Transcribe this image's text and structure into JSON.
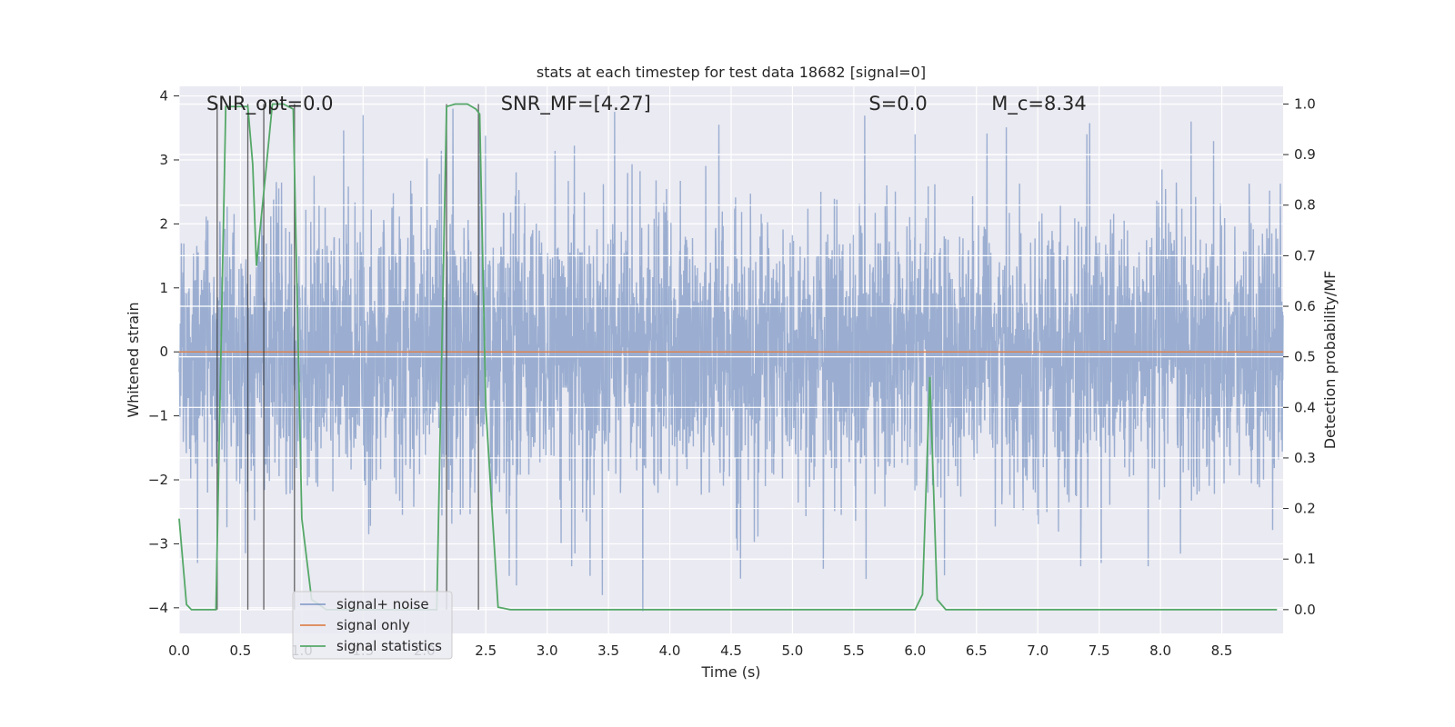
{
  "chart_data": {
    "type": "line",
    "title": "stats at each timestep for test data 18682 [signal=0]",
    "xlabel": "Time (s)",
    "ylabel_left": "Whitened strain",
    "ylabel_right": "Detection probability/MF",
    "xlim": [
      0,
      9.0
    ],
    "ylim_left": [
      -4.4,
      4.15
    ],
    "ylim_right": [
      -0.047,
      1.035
    ],
    "xticks": [
      "0.0",
      "0.5",
      "1.0",
      "1.5",
      "2.0",
      "2.5",
      "3.0",
      "3.5",
      "4.0",
      "4.5",
      "5.0",
      "5.5",
      "6.0",
      "6.5",
      "7.0",
      "7.5",
      "8.0",
      "8.5"
    ],
    "yticks_left": [
      "4",
      "3",
      "2",
      "1",
      "0",
      "−1",
      "−2",
      "−3",
      "−4"
    ],
    "yticks_right": [
      "1.0",
      "0.9",
      "0.8",
      "0.7",
      "0.6",
      "0.5",
      "0.4",
      "0.3",
      "0.2",
      "0.1",
      "0.0"
    ],
    "grid": true,
    "legend_placement": "lower-left",
    "annotations": [
      {
        "text": "SNR_opt=0.0",
        "x": 0.2
      },
      {
        "text": "SNR_MF=[4.27]",
        "x": 2.6
      },
      {
        "text": "S=0.0",
        "x": 5.6
      },
      {
        "text": "M_c=8.34",
        "x": 6.6
      }
    ],
    "series": [
      {
        "name": "signal+ noise",
        "color": "#4c72b0",
        "axis": "left",
        "x": [
          0,
          9.0
        ],
        "amplitude_envelope": [
          -3.7,
          3.8
        ],
        "peaks": [
          {
            "x": 0.15,
            "y": -3.3
          },
          {
            "x": 1.5,
            "y": 3.7
          },
          {
            "x": 2.45,
            "y": 3.7
          },
          {
            "x": 2.75,
            "y": -3.65
          },
          {
            "x": 3.2,
            "y": -3.35
          },
          {
            "x": 3.35,
            "y": -3.5
          },
          {
            "x": 3.45,
            "y": -3.8
          },
          {
            "x": 3.55,
            "y": 3.75
          },
          {
            "x": 3.78,
            "y": -4.05
          },
          {
            "x": 4.4,
            "y": 3.55
          },
          {
            "x": 5.6,
            "y": -3.55
          },
          {
            "x": 6.0,
            "y": 3.4
          },
          {
            "x": 7.35,
            "y": -3.35
          },
          {
            "x": 7.4,
            "y": 3.4
          },
          {
            "x": 7.9,
            "y": -3.35
          },
          {
            "x": 8.25,
            "y": 3.6
          }
        ]
      },
      {
        "name": "signal only",
        "color": "#dd8452",
        "axis": "left",
        "x": [
          0,
          9.0
        ],
        "y": [
          0,
          0
        ]
      },
      {
        "name": "signal statistics",
        "color": "#55a868",
        "axis": "right",
        "x": [
          0.0,
          0.06,
          0.1,
          0.2,
          0.3,
          0.34,
          0.38,
          0.45,
          0.52,
          0.56,
          0.6,
          0.63,
          0.7,
          0.76,
          0.85,
          0.93,
          1.0,
          1.08,
          1.2,
          1.5,
          1.8,
          2.1,
          2.18,
          2.25,
          2.35,
          2.42,
          2.45,
          2.5,
          2.55,
          2.6,
          2.7,
          3.0,
          4.0,
          5.0,
          5.8,
          6.0,
          6.06,
          6.12,
          6.18,
          6.25,
          6.5,
          7.0,
          8.0,
          8.95
        ],
        "y": [
          0.18,
          0.01,
          0.0,
          0.0,
          0.0,
          0.5,
          0.995,
          0.995,
          0.995,
          0.995,
          0.88,
          0.68,
          0.85,
          1.0,
          1.0,
          0.99,
          0.18,
          0.02,
          0.0,
          0.0,
          0.0,
          0.0,
          0.995,
          1.0,
          1.0,
          0.99,
          0.98,
          0.4,
          0.2,
          0.005,
          0.0,
          0.0,
          0.0,
          0.0,
          0.0,
          0.0,
          0.03,
          0.46,
          0.02,
          0.0,
          0.0,
          0.0,
          0.0,
          0.0
        ]
      }
    ],
    "vertical_markers_x": [
      0.31,
      0.56,
      0.69,
      0.94,
      2.18,
      2.44
    ],
    "legend": [
      "signal+ noise",
      "signal only",
      "signal statistics"
    ]
  }
}
